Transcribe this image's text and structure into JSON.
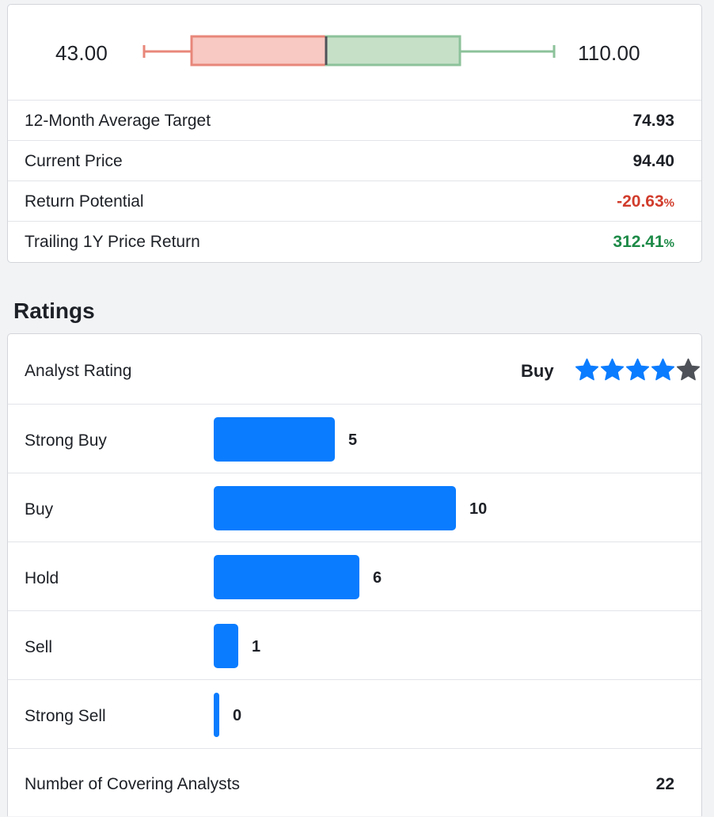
{
  "price_target": {
    "low": "43.00",
    "high": "110.00",
    "low_value": 43.0,
    "high_value": 110.0,
    "average_value": 74.93,
    "current_value": 94.4,
    "low_color": "#e8877a",
    "high_color": "#8cc29a",
    "stats": [
      {
        "label": "12-Month Average Target",
        "value": "74.93",
        "suffix": ""
      },
      {
        "label": "Current Price",
        "value": "94.40",
        "suffix": ""
      },
      {
        "label": "Return Potential",
        "value": "-20.63",
        "suffix": "%"
      },
      {
        "label": "Trailing 1Y Price Return",
        "value": "312.41",
        "suffix": "%"
      }
    ]
  },
  "ratings": {
    "title": "Ratings",
    "analyst_rating_label": "Analyst Rating",
    "analyst_rating_value": "Buy",
    "stars_filled": 4,
    "stars_total": 5,
    "star_color": "#0a7cff",
    "star_empty_color": "#4e5258",
    "bar_color": "#0a7cff",
    "breakdown": [
      {
        "label": "Strong Buy",
        "count": "5"
      },
      {
        "label": "Buy",
        "count": "10"
      },
      {
        "label": "Hold",
        "count": "6"
      },
      {
        "label": "Sell",
        "count": "1"
      },
      {
        "label": "Strong Sell",
        "count": "0"
      }
    ],
    "covering_label": "Number of Covering Analysts",
    "covering_value": "22"
  }
}
